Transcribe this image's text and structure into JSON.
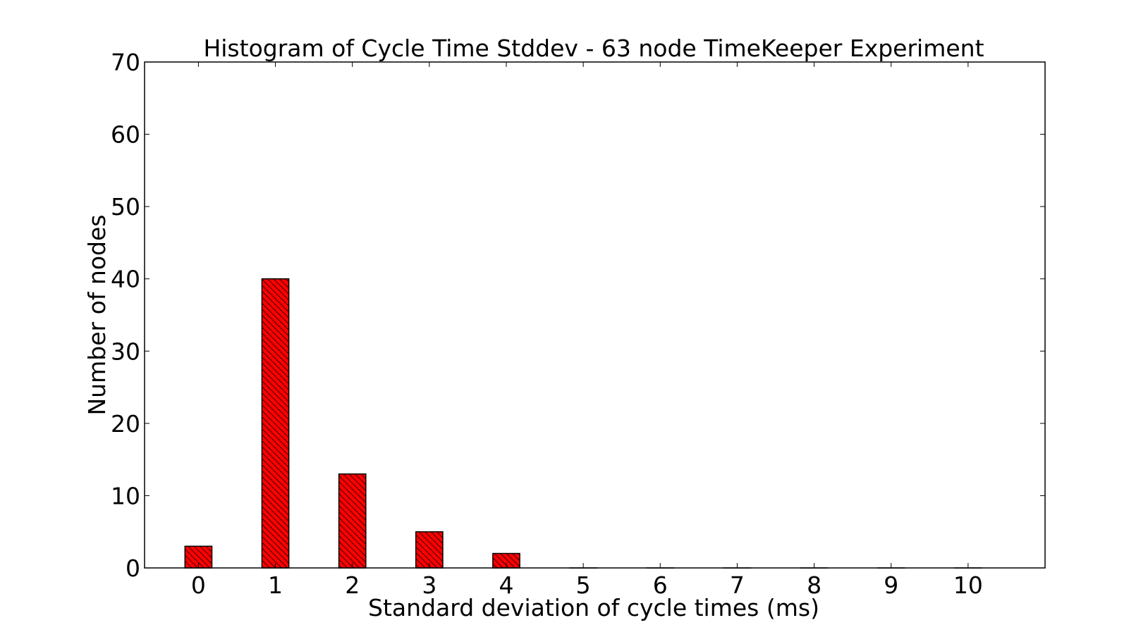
{
  "chart_data": {
    "type": "bar",
    "title": "Histogram of Cycle Time Stddev - 63 node TimeKeeper Experiment",
    "xlabel": "Standard deviation of cycle times (ms)",
    "ylabel": "Number of nodes",
    "categories": [
      "0",
      "1",
      "2",
      "3",
      "4",
      "5",
      "6",
      "7",
      "8",
      "9",
      "10"
    ],
    "values": [
      3,
      40,
      13,
      5,
      2,
      0,
      0,
      0,
      0,
      0,
      0
    ],
    "xlim": [
      -0.7,
      11
    ],
    "ylim": [
      0,
      70
    ],
    "yticks": [
      "0",
      "10",
      "20",
      "30",
      "40",
      "50",
      "60",
      "70"
    ],
    "bar_width": 0.35,
    "grid": false,
    "legend": "none",
    "bar_color": "#ff0000",
    "hatch": "diagonal"
  }
}
